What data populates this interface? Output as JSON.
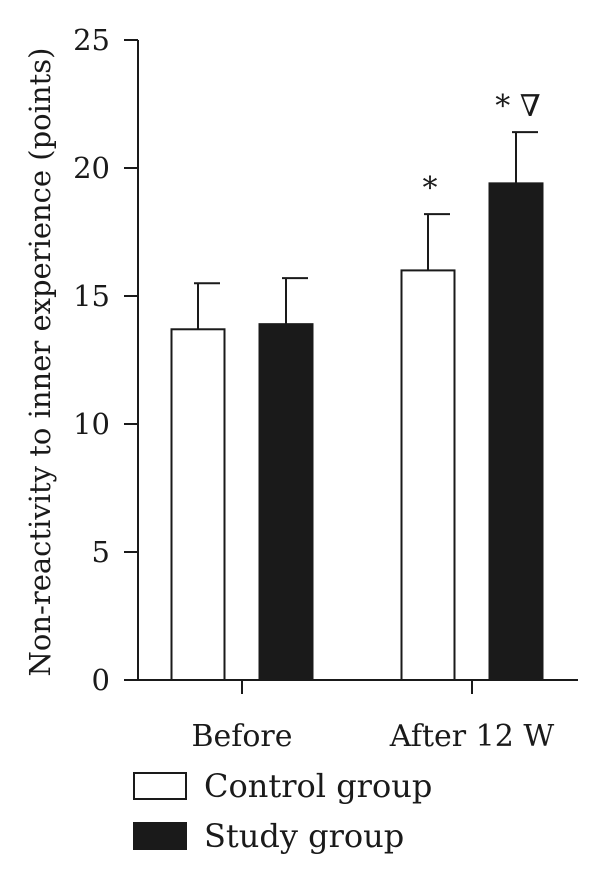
{
  "chart_data": {
    "type": "bar",
    "title": "",
    "xlabel": "",
    "ylabel": "Non-reactivity to inner experience (points)",
    "ylim": [
      0,
      25
    ],
    "yticks": [
      0,
      5,
      10,
      15,
      20,
      25
    ],
    "categories": [
      "Before",
      "After 12 W"
    ],
    "series": [
      {
        "name": "Control group",
        "color": "#ffffff",
        "values": [
          13.7,
          16.0
        ],
        "errors": [
          1.8,
          2.2
        ],
        "annotations": [
          "",
          "*"
        ]
      },
      {
        "name": "Study group",
        "color": "#1a1a1a",
        "values": [
          13.9,
          19.4
        ],
        "errors": [
          1.8,
          2.0
        ],
        "annotations": [
          "",
          "* ∇"
        ]
      }
    ],
    "legend_position": "bottom-left",
    "grid": false
  }
}
